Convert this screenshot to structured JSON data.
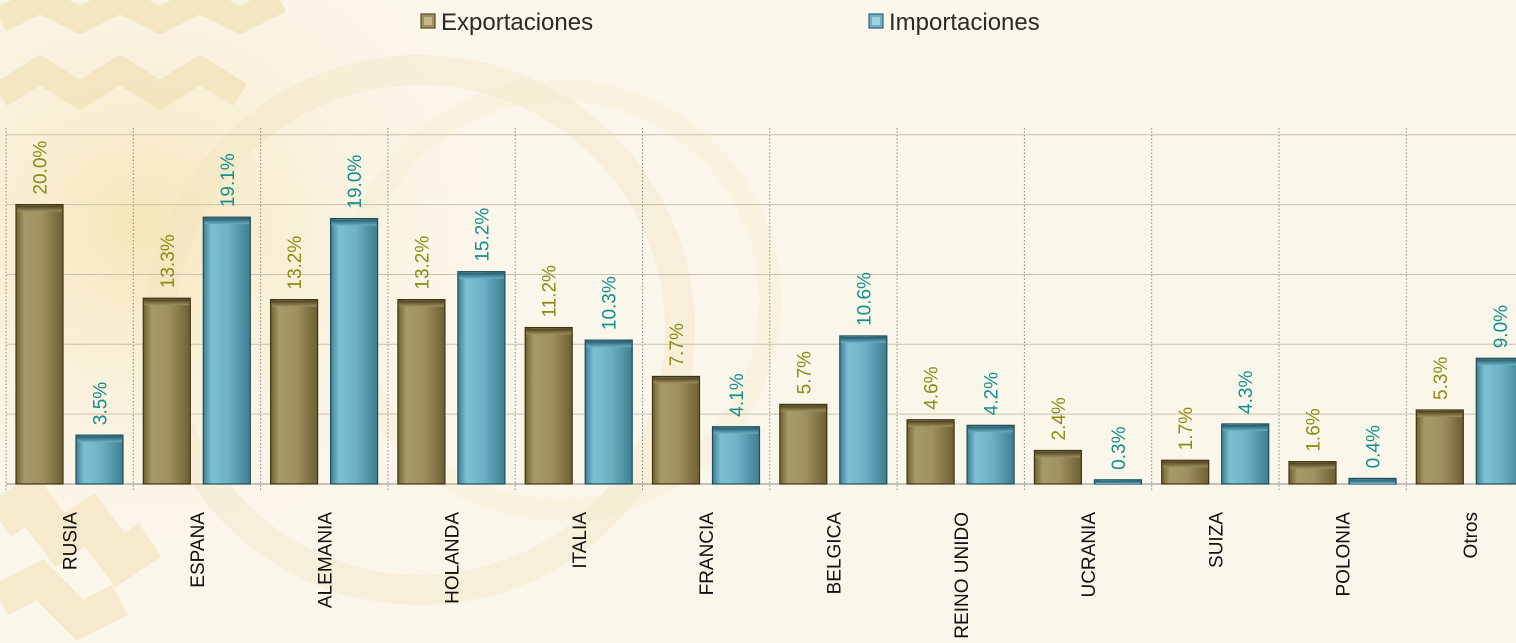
{
  "colors": {
    "export_color": "#a09060",
    "import_color": "#6bb0c4",
    "export_label_color": "#8b8c12",
    "import_label_color": "#138f8e",
    "gridline_color": "#c9c1a8"
  },
  "legend": {
    "export_label": "Exportaciones",
    "import_label": "Importaciones"
  },
  "chart_data": {
    "type": "bar",
    "categories": [
      "RUSIA",
      "ESPANA",
      "ALEMANIA",
      "HOLANDA",
      "ITALIA",
      "FRANCIA",
      "BELGICA",
      "REINO UNIDO",
      "UCRANIA",
      "SUIZA",
      "POLONIA",
      "Otros"
    ],
    "series": [
      {
        "name": "Exportaciones",
        "values": [
          20.0,
          13.3,
          13.2,
          13.2,
          11.2,
          7.7,
          5.7,
          4.6,
          2.4,
          1.7,
          1.6,
          5.3
        ],
        "labels": [
          "20.0%",
          "13.3%",
          "13.2%",
          "13.2%",
          "11.2%",
          "7.7%",
          "5.7%",
          "4.6%",
          "2.4%",
          "1.7%",
          "1.6%",
          "5.3%"
        ]
      },
      {
        "name": "Importaciones",
        "values": [
          3.5,
          19.1,
          19.0,
          15.2,
          10.3,
          4.1,
          10.6,
          4.2,
          0.3,
          4.3,
          0.4,
          9.0
        ],
        "labels": [
          "3.5%",
          "19.1%",
          "19.0%",
          "15.2%",
          "10.3%",
          "4.1%",
          "10.6%",
          "4.2%",
          "0.3%",
          "4.3%",
          "0.4%",
          "9.0%"
        ]
      }
    ],
    "ylim": [
      0,
      25
    ],
    "title": "",
    "xlabel": "",
    "ylabel": "",
    "legend_position": "top",
    "grid": true
  }
}
